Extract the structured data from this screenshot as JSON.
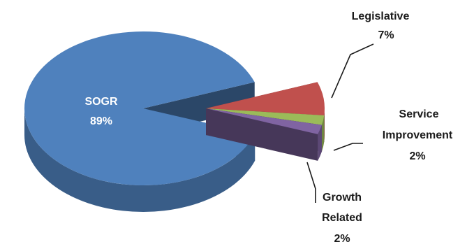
{
  "chart_data": {
    "type": "pie",
    "three_d": true,
    "title": "",
    "legend": "none",
    "slices": [
      {
        "name": "Legislative",
        "value": 7,
        "label": "7%",
        "color": "#c0504d",
        "exploded": true
      },
      {
        "name": "Service Improvement",
        "name_lines": [
          "Service",
          "Improvement"
        ],
        "value": 2,
        "label": "2%",
        "color": "#9bbb59",
        "exploded": true
      },
      {
        "name": "Growth Related",
        "name_lines": [
          "Growth",
          "Related"
        ],
        "value": 2,
        "label": "2%",
        "color": "#8064a2",
        "exploded": true
      },
      {
        "name": "SOGR",
        "value": 89,
        "label": "89%",
        "color": "#4f81bd",
        "exploded": false
      }
    ]
  }
}
